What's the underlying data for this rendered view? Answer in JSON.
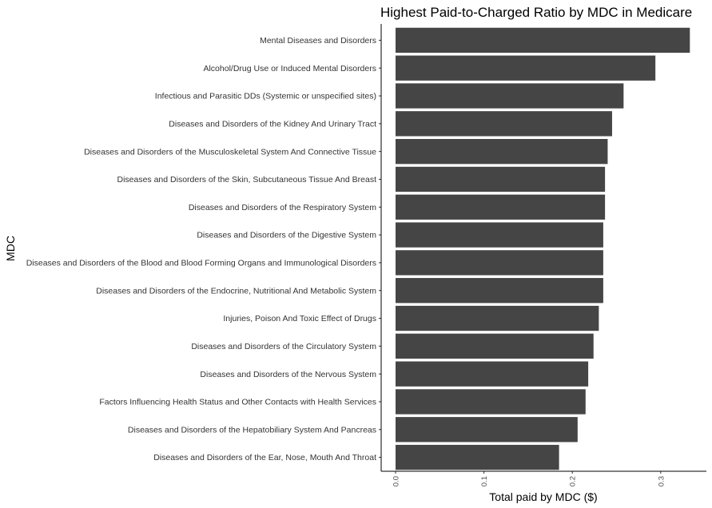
{
  "chart_data": {
    "type": "bar",
    "orientation": "horizontal",
    "title": "Highest Paid-to-Charged Ratio by MDC in Medicare",
    "xlabel": "Total paid by MDC ($)",
    "ylabel": "MDC",
    "xlim": [
      0,
      0.345
    ],
    "xticks": [
      0.0,
      0.1,
      0.2,
      0.3
    ],
    "xtick_labels": [
      "0.0",
      "0.1",
      "0.2",
      "0.3"
    ],
    "grid": false,
    "bar_color": "#454545",
    "categories": [
      "Mental Diseases and Disorders",
      "Alcohol/Drug Use or Induced Mental Disorders",
      "Infectious and Parasitic DDs (Systemic or unspecified sites)",
      "Diseases and Disorders of the Kidney And Urinary Tract",
      "Diseases and Disorders of the Musculoskeletal System And Connective Tissue",
      "Diseases and Disorders of the Skin, Subcutaneous Tissue And Breast",
      "Diseases and Disorders of the Respiratory System",
      "Diseases and Disorders of the Digestive System",
      "Diseases and Disorders of the Blood and Blood Forming Organs and Immunological Disorders",
      "Diseases and Disorders of the Endocrine, Nutritional And Metabolic System",
      "Injuries, Poison And Toxic Effect of Drugs",
      "Diseases and Disorders of the Circulatory System",
      "Diseases and Disorders of the Nervous System",
      "Factors Influencing Health Status and Other Contacts with Health Services",
      "Diseases and Disorders of the Hepatobiliary System And Pancreas",
      "Diseases and Disorders of the Ear, Nose, Mouth And Throat"
    ],
    "values": [
      0.333,
      0.294,
      0.258,
      0.245,
      0.24,
      0.237,
      0.237,
      0.235,
      0.235,
      0.235,
      0.23,
      0.224,
      0.218,
      0.215,
      0.206,
      0.185
    ]
  }
}
